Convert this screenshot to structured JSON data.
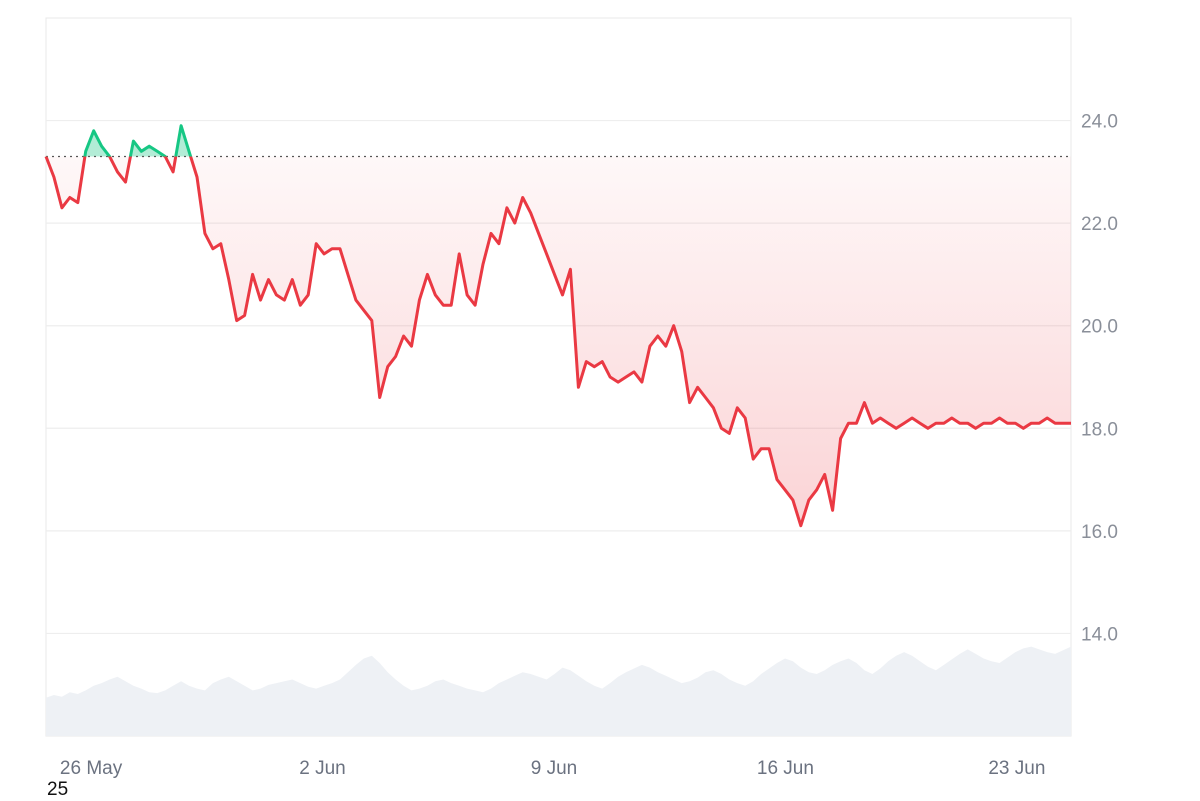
{
  "chart_data": {
    "type": "line",
    "title": "",
    "xlabel": "",
    "ylabel": "",
    "x_ticks": [
      "26 May",
      "2 Jun",
      "9 Jun",
      "16 Jun",
      "23 Jun"
    ],
    "y_ticks": [
      "14.0",
      "16.0",
      "18.0",
      "20.0",
      "22.0",
      "24.0"
    ],
    "ylim": [
      12.0,
      26.0
    ],
    "xlim": [
      "2025-05-25",
      "2025-06-25"
    ],
    "baseline": 23.3,
    "grid": true,
    "colors": {
      "above": "#16c784",
      "below": "#ea3943",
      "volume": "#eef1f5",
      "grid": "#eeeeee"
    },
    "series": [
      {
        "x": [
          "2025-05-25",
          "2025-05-25",
          "2025-05-26",
          "2025-05-26",
          "2025-05-26",
          "2025-05-26",
          "2025-05-26",
          "2025-05-26",
          "2025-05-26",
          "2025-05-26",
          "2025-05-27",
          "2025-05-27",
          "2025-05-27",
          "2025-05-27",
          "2025-05-27",
          "2025-05-27",
          "2025-05-28",
          "2025-05-28",
          "2025-05-28",
          "2025-05-28",
          "2025-05-28",
          "2025-05-28",
          "2025-05-29",
          "2025-05-29",
          "2025-05-29",
          "2025-05-29",
          "2025-05-29",
          "2025-05-29",
          "2025-05-29",
          "2025-05-30",
          "2025-05-30",
          "2025-05-30",
          "2025-05-30",
          "2025-05-31",
          "2025-05-31",
          "2025-05-31",
          "2025-05-31",
          "2025-06-01",
          "2025-06-01",
          "2025-06-01",
          "2025-06-01",
          "2025-06-02",
          "2025-06-02",
          "2025-06-02",
          "2025-06-02",
          "2025-06-03",
          "2025-06-03",
          "2025-06-03",
          "2025-06-03",
          "2025-06-04",
          "2025-06-04",
          "2025-06-04",
          "2025-06-04",
          "2025-06-05",
          "2025-06-05",
          "2025-06-05",
          "2025-06-05",
          "2025-06-05",
          "2025-06-06",
          "2025-06-06",
          "2025-06-06",
          "2025-06-07",
          "2025-06-07",
          "2025-06-07",
          "2025-06-07",
          "2025-06-08",
          "2025-06-08",
          "2025-06-08",
          "2025-06-08",
          "2025-06-09",
          "2025-06-09",
          "2025-06-09",
          "2025-06-09",
          "2025-06-10",
          "2025-06-10",
          "2025-06-10",
          "2025-06-10",
          "2025-06-11",
          "2025-06-11",
          "2025-06-11",
          "2025-06-11",
          "2025-06-12",
          "2025-06-12",
          "2025-06-12",
          "2025-06-12",
          "2025-06-13",
          "2025-06-13",
          "2025-06-13",
          "2025-06-13",
          "2025-06-14",
          "2025-06-14",
          "2025-06-14",
          "2025-06-15",
          "2025-06-15",
          "2025-06-15",
          "2025-06-16",
          "2025-06-16",
          "2025-06-16",
          "2025-06-16",
          "2025-06-17",
          "2025-06-17",
          "2025-06-17",
          "2025-06-17",
          "2025-06-18",
          "2025-06-18",
          "2025-06-18",
          "2025-06-19",
          "2025-06-19",
          "2025-06-19",
          "2025-06-19",
          "2025-06-20",
          "2025-06-20",
          "2025-06-20",
          "2025-06-20",
          "2025-06-21",
          "2025-06-21",
          "2025-06-21",
          "2025-06-22",
          "2025-06-22",
          "2025-06-22",
          "2025-06-22",
          "2025-06-23",
          "2025-06-23",
          "2025-06-23",
          "2025-06-23",
          "2025-06-24",
          "2025-06-24",
          "2025-06-24",
          "2025-06-24",
          "2025-06-24"
        ],
        "values": [
          23.3,
          22.9,
          22.3,
          22.5,
          22.4,
          23.4,
          23.8,
          23.5,
          23.3,
          23.0,
          22.8,
          23.6,
          23.4,
          23.5,
          23.4,
          23.3,
          23.0,
          23.9,
          23.4,
          22.9,
          21.8,
          21.5,
          21.6,
          20.9,
          20.1,
          20.2,
          21.0,
          20.5,
          20.9,
          20.6,
          20.5,
          20.9,
          20.4,
          20.6,
          21.6,
          21.4,
          21.5,
          21.5,
          21.0,
          20.5,
          20.3,
          20.1,
          18.6,
          19.2,
          19.4,
          19.8,
          19.6,
          20.5,
          21.0,
          20.6,
          20.4,
          20.4,
          21.4,
          20.6,
          20.4,
          21.2,
          21.8,
          21.6,
          22.3,
          22.0,
          22.5,
          22.2,
          21.8,
          21.4,
          21.0,
          20.6,
          21.1,
          18.8,
          19.3,
          19.2,
          19.3,
          19.0,
          18.9,
          19.0,
          19.1,
          18.9,
          19.6,
          19.8,
          19.6,
          20.0,
          19.5,
          18.5,
          18.8,
          18.6,
          18.4,
          18.0,
          17.9,
          18.4,
          18.2,
          17.4,
          17.6,
          17.6,
          17.0,
          16.8,
          16.6,
          16.1,
          16.6,
          16.8,
          17.1,
          16.4,
          17.8,
          18.1,
          18.1,
          18.5,
          18.1,
          18.2,
          18.1,
          18.0,
          18.1,
          18.2,
          18.1,
          18.0,
          18.1,
          18.1,
          18.2,
          18.1,
          18.1,
          18.0,
          18.1,
          18.1,
          18.2,
          18.1,
          18.1,
          18.0,
          18.1,
          18.1,
          18.2,
          18.1,
          18.1,
          18.1
        ]
      }
    ],
    "volume": [
      0.42,
      0.45,
      0.43,
      0.48,
      0.46,
      0.5,
      0.55,
      0.58,
      0.62,
      0.65,
      0.6,
      0.55,
      0.52,
      0.48,
      0.47,
      0.5,
      0.55,
      0.6,
      0.55,
      0.52,
      0.5,
      0.58,
      0.62,
      0.65,
      0.6,
      0.55,
      0.5,
      0.52,
      0.56,
      0.58,
      0.6,
      0.62,
      0.58,
      0.54,
      0.52,
      0.55,
      0.58,
      0.62,
      0.7,
      0.78,
      0.85,
      0.88,
      0.8,
      0.7,
      0.62,
      0.55,
      0.5,
      0.52,
      0.55,
      0.6,
      0.62,
      0.58,
      0.55,
      0.52,
      0.5,
      0.48,
      0.52,
      0.58,
      0.62,
      0.66,
      0.7,
      0.68,
      0.65,
      0.62,
      0.68,
      0.75,
      0.72,
      0.66,
      0.6,
      0.55,
      0.52,
      0.58,
      0.65,
      0.7,
      0.74,
      0.78,
      0.75,
      0.7,
      0.66,
      0.62,
      0.58,
      0.6,
      0.64,
      0.7,
      0.72,
      0.68,
      0.62,
      0.58,
      0.55,
      0.6,
      0.68,
      0.74,
      0.8,
      0.85,
      0.82,
      0.75,
      0.7,
      0.68,
      0.72,
      0.78,
      0.82,
      0.85,
      0.8,
      0.72,
      0.68,
      0.74,
      0.82,
      0.88,
      0.92,
      0.88,
      0.82,
      0.76,
      0.72,
      0.78,
      0.84,
      0.9,
      0.95,
      0.9,
      0.85,
      0.82,
      0.8,
      0.86,
      0.92,
      0.96,
      0.98,
      0.95,
      0.92,
      0.9,
      0.94,
      0.98
    ]
  },
  "footer_label": "25"
}
